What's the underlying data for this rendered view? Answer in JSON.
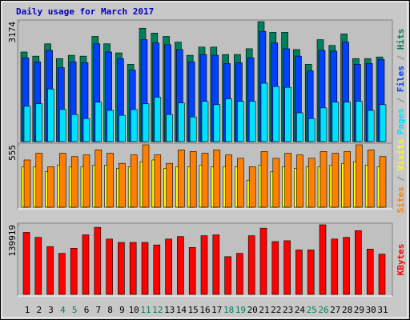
{
  "chart_data": {
    "type": "bar",
    "title": "Daily usage for March 2017",
    "categories": [
      "1",
      "2",
      "3",
      "4",
      "5",
      "6",
      "7",
      "8",
      "9",
      "10",
      "11",
      "12",
      "13",
      "14",
      "15",
      "16",
      "17",
      "18",
      "19",
      "20",
      "21",
      "22",
      "23",
      "24",
      "25",
      "26",
      "27",
      "28",
      "29",
      "30",
      "31"
    ],
    "category_colors": [
      "#000000",
      "#000000",
      "#000000",
      "#00805c",
      "#00805c",
      "#000000",
      "#000000",
      "#000000",
      "#000000",
      "#000000",
      "#00805c",
      "#00805c",
      "#000000",
      "#000000",
      "#000000",
      "#000000",
      "#000000",
      "#00805c",
      "#00805c",
      "#000000",
      "#000000",
      "#000000",
      "#000000",
      "#000000",
      "#00805c",
      "#00805c",
      "#000000",
      "#000000",
      "#000000",
      "#000000",
      "#000000"
    ],
    "panels": [
      {
        "ylim": [
          0,
          3174
        ],
        "yticks": [
          3174
        ],
        "legend_separator": " / ",
        "series": [
          {
            "name": "Hits",
            "color": "#00805c",
            "values": [
              2370,
              2261,
              2587,
              2196,
              2283,
              2261,
              2783,
              2587,
              2348,
              2044,
              3000,
              2870,
              2783,
              2631,
              2283,
              2500,
              2500,
              2304,
              2304,
              2457,
              3174,
              2891,
              2891,
              2435,
              2044,
              2696,
              2544,
              2848,
              2196,
              2196,
              2239
            ]
          },
          {
            "name": "Files",
            "color": "#0040ff",
            "values": [
              2217,
              2109,
              2413,
              1957,
              2109,
              2087,
              2587,
              2370,
              2196,
              1891,
              2696,
              2609,
              2565,
              2435,
              2109,
              2304,
              2283,
              2065,
              2087,
              2217,
              2913,
              2609,
              2457,
              2261,
              1870,
              2413,
              2391,
              2631,
              2044,
              2065,
              2174
            ]
          },
          {
            "name": "Pages",
            "color": "#00e0ff",
            "values": [
              935,
              1000,
              1391,
              848,
              717,
              609,
              1043,
              826,
              696,
              848,
              1000,
              1174,
              717,
              1022,
              652,
              1065,
              978,
              1130,
              1065,
              1065,
              1544,
              1457,
              1435,
              761,
              609,
              891,
              1043,
              1043,
              1065,
              826,
              978
            ]
          }
        ]
      },
      {
        "ylim": [
          0,
          555
        ],
        "yticks": [
          555
        ],
        "legend_separator": " / ",
        "series": [
          {
            "name": "Visits",
            "color": "#ffff00",
            "values": [
              360,
              360,
              315,
              375,
              360,
              360,
              375,
              375,
              345,
              360,
              405,
              420,
              345,
              360,
              360,
              375,
              360,
              360,
              360,
              240,
              375,
              315,
              360,
              345,
              360,
              360,
              375,
              390,
              405,
              375,
              360
            ]
          },
          {
            "name": "Sites",
            "color": "#ff8000",
            "values": [
              420,
              480,
              360,
              480,
              450,
              465,
              510,
              480,
              390,
              465,
              555,
              465,
              390,
              510,
              495,
              480,
              510,
              465,
              435,
              360,
              495,
              435,
              480,
              465,
              435,
              495,
              480,
              495,
              555,
              510,
              450
            ]
          }
        ]
      },
      {
        "ylim": [
          0,
          139919
        ],
        "yticks": [
          139919
        ],
        "series": [
          {
            "name": "KBytes",
            "color": "#ff0000",
            "values": [
              124760,
              114650,
              96100,
              82610,
              92730,
              119700,
              134880,
              111280,
              104530,
              104530,
              104530,
              99470,
              111280,
              116330,
              94420,
              118020,
              119700,
              75870,
              82610,
              118020,
              133190,
              106220,
              107900,
              89360,
              89360,
              139919,
              111280,
              114650,
              128140,
              91040,
              80930
            ]
          }
        ]
      }
    ]
  }
}
